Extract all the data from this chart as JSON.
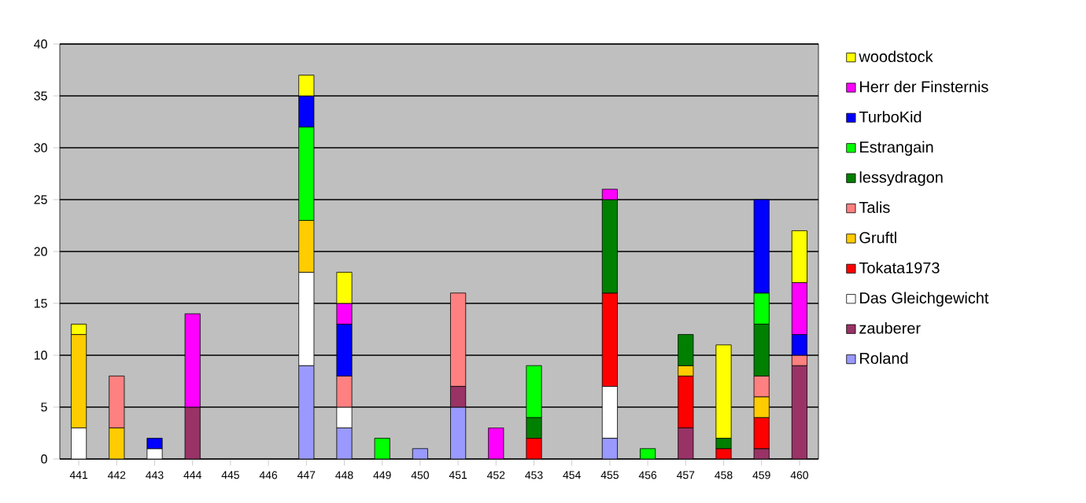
{
  "chart_data": {
    "type": "bar",
    "stacked": true,
    "categories": [
      "441",
      "442",
      "443",
      "444",
      "445",
      "446",
      "447",
      "448",
      "449",
      "450",
      "451",
      "452",
      "453",
      "454",
      "455",
      "456",
      "457",
      "458",
      "459",
      "460"
    ],
    "series": [
      {
        "name": "Roland",
        "color": "#9999ff",
        "values": [
          null,
          null,
          null,
          null,
          null,
          null,
          9,
          3,
          null,
          1,
          5,
          null,
          null,
          null,
          2,
          null,
          null,
          null,
          null,
          null
        ]
      },
      {
        "name": "zauberer",
        "color": "#993366",
        "values": [
          null,
          null,
          null,
          5,
          null,
          null,
          null,
          null,
          null,
          null,
          2,
          null,
          null,
          null,
          null,
          null,
          3,
          null,
          1,
          9
        ]
      },
      {
        "name": "Das Gleichgewicht",
        "color": "#ffffff",
        "values": [
          3,
          null,
          1,
          null,
          null,
          null,
          9,
          2,
          null,
          null,
          null,
          null,
          null,
          null,
          5,
          null,
          null,
          null,
          null,
          null
        ]
      },
      {
        "name": "Tokata1973",
        "color": "#ff0000",
        "values": [
          null,
          null,
          null,
          null,
          null,
          null,
          null,
          null,
          null,
          null,
          null,
          null,
          2,
          null,
          9,
          null,
          5,
          1,
          3,
          null
        ]
      },
      {
        "name": "Gruftl",
        "color": "#ffcc00",
        "values": [
          9,
          3,
          null,
          null,
          null,
          null,
          5,
          null,
          null,
          null,
          null,
          null,
          null,
          null,
          null,
          null,
          1,
          null,
          2,
          null
        ]
      },
      {
        "name": "Talis",
        "color": "#ff8080",
        "values": [
          null,
          5,
          null,
          null,
          null,
          null,
          null,
          3,
          null,
          null,
          9,
          null,
          null,
          null,
          null,
          null,
          null,
          null,
          2,
          1
        ]
      },
      {
        "name": "lessydragon",
        "color": "#008000",
        "values": [
          null,
          null,
          null,
          null,
          null,
          null,
          null,
          null,
          null,
          null,
          null,
          null,
          2,
          null,
          9,
          null,
          3,
          1,
          5,
          null
        ]
      },
      {
        "name": "Estrangain",
        "color": "#00ff00",
        "values": [
          null,
          null,
          null,
          null,
          null,
          null,
          9,
          null,
          2,
          null,
          null,
          null,
          5,
          null,
          null,
          1,
          null,
          null,
          3,
          null
        ]
      },
      {
        "name": "TurboKid",
        "color": "#0000ff",
        "values": [
          null,
          null,
          1,
          null,
          null,
          null,
          3,
          5,
          null,
          null,
          null,
          null,
          null,
          null,
          null,
          null,
          null,
          null,
          9,
          2
        ]
      },
      {
        "name": "Herr der Finsternis",
        "color": "#ff00ff",
        "values": [
          null,
          null,
          null,
          9,
          null,
          null,
          null,
          2,
          null,
          null,
          null,
          3,
          null,
          null,
          1,
          null,
          null,
          null,
          null,
          5
        ]
      },
      {
        "name": "woodstock",
        "color": "#ffff00",
        "values": [
          1,
          null,
          null,
          null,
          null,
          null,
          2,
          3,
          null,
          null,
          null,
          null,
          null,
          null,
          null,
          null,
          null,
          9,
          null,
          5
        ]
      }
    ],
    "ylim": [
      0,
      40
    ],
    "yticks": [
      0,
      5,
      10,
      15,
      20,
      25,
      30,
      35,
      40
    ],
    "grid": "y",
    "legend": "right"
  }
}
